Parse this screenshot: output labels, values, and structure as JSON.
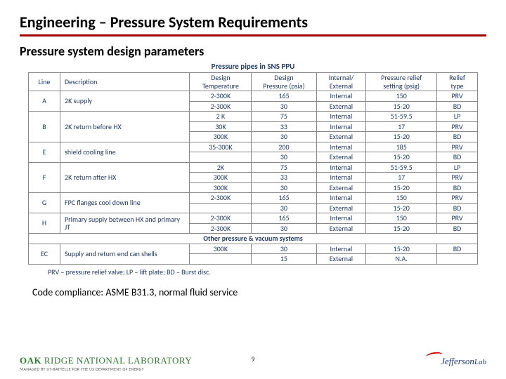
{
  "title": "Engineering – Pressure System Requirements",
  "subtitle": "Pressure system design parameters",
  "table_title": "Pressure pipes in SNS PPU",
  "headers": {
    "line": "Line",
    "desc": "Description",
    "design_temp": "Design\nTemperature",
    "design_press": "Design\nPressure (psia)",
    "intext": "Internal/\nExternal",
    "relief_set": "Pressure relief\nsetting (psig)",
    "relief_type": "Relief\ntype"
  },
  "rows": [
    {
      "line": "A",
      "desc": "2K supply",
      "sub": [
        [
          "2-300K",
          "165",
          "Internal",
          "150",
          "PRV"
        ],
        [
          "2-300K",
          "30",
          "External",
          "15-20",
          "BD"
        ]
      ]
    },
    {
      "line": "B",
      "desc": "2K return before HX",
      "sub": [
        [
          "2 K",
          "75",
          "Internal",
          "51-59.5",
          "LP"
        ],
        [
          "30K",
          "33",
          "Internal",
          "17",
          "PRV"
        ],
        [
          "300K",
          "30",
          "External",
          "15-20",
          "BD"
        ]
      ]
    },
    {
      "line": "E",
      "desc": "shield cooling line",
      "sub": [
        [
          "35-300K",
          "200",
          "Internal",
          "185",
          "PRV"
        ],
        [
          "",
          "30",
          "External",
          "15-20",
          "BD"
        ]
      ]
    },
    {
      "line": "F",
      "desc": "2K return after HX",
      "sub": [
        [
          "2K",
          "75",
          "Internal",
          "51-59.5",
          "LP"
        ],
        [
          "300K",
          "33",
          "Internal",
          "17",
          "PRV"
        ],
        [
          "300K",
          "30",
          "External",
          "15-20",
          "BD"
        ]
      ]
    },
    {
      "line": "G",
      "desc": "FPC flanges cool down line",
      "sub": [
        [
          "2-300K",
          "165",
          "Internal",
          "150",
          "PRV"
        ],
        [
          "",
          "30",
          "External",
          "15-20",
          "BD"
        ]
      ]
    },
    {
      "line": "H",
      "desc": "Primary supply between HX and primary JT",
      "sub": [
        [
          "2-300K",
          "165",
          "Internal",
          "150",
          "PRV"
        ],
        [
          "2-300K",
          "30",
          "External",
          "15-20",
          "BD"
        ]
      ]
    }
  ],
  "section2_title": "Other pressure & vacuum systems",
  "row_ec": {
    "line": "EC",
    "desc": "Supply and return end can shells",
    "sub": [
      [
        "300K",
        "30",
        "Internal",
        "15-20",
        "BD"
      ],
      [
        "",
        "15",
        "External",
        "N.A.",
        ""
      ]
    ]
  },
  "legend": "PRV – pressure relief valve; LP – lift plate; BD – Burst disc.",
  "compliance": "Code compliance: ASME B31.3, normal fluid service",
  "page_number": "9",
  "ornl_main_1": "OAK ",
  "ornl_main_2": "RIDGE NATIONAL LABORATORY",
  "ornl_sub": "MANAGED BY UT-BATTELLE FOR THE US DEPARTMENT OF ENERGY",
  "jlab_1": "Jefferson",
  "jlab_2": "Lab"
}
